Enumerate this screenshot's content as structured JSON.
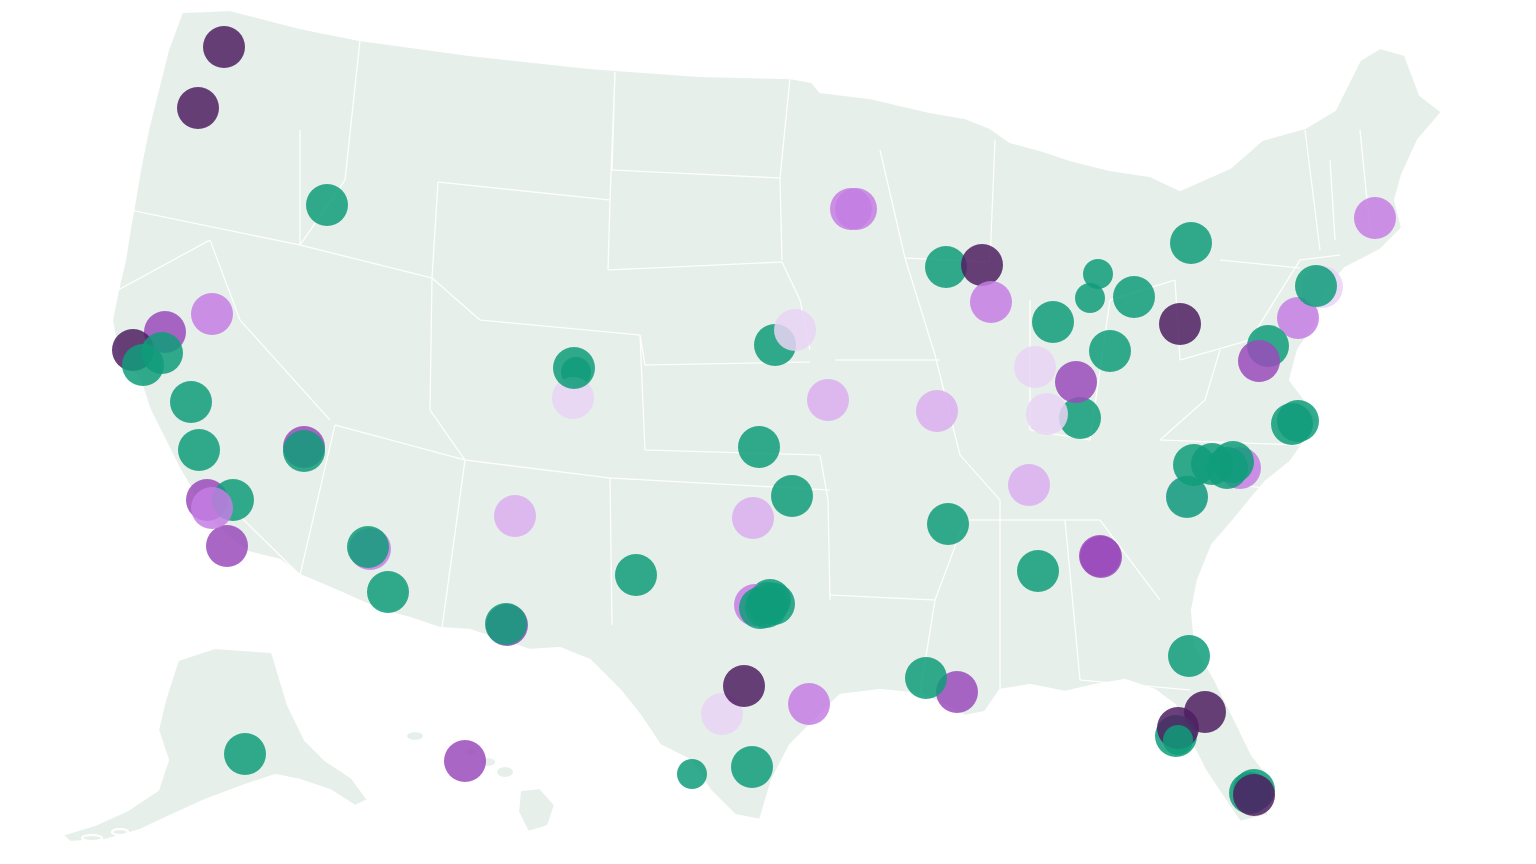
{
  "map": {
    "land_color": "#e6efe9",
    "border_color": "#ffffff"
  },
  "categories": {
    "green": {
      "color": "#0f9c7a",
      "opacity": 0.85
    },
    "dark-purple": {
      "color": "#4f1f62",
      "opacity": 0.85
    },
    "purple": {
      "color": "#9a4bbb",
      "opacity": 0.85
    },
    "violet": {
      "color": "#c47ee3",
      "opacity": 0.85
    },
    "lavender": {
      "color": "#d9aef0",
      "opacity": 0.85
    },
    "pale": {
      "color": "#e9d4f4",
      "opacity": 0.85
    }
  },
  "markers": [
    {
      "cat": "dark-purple",
      "size": "large"
    },
    {
      "cat": "dark-purple",
      "size": "large"
    },
    {
      "cat": "green",
      "size": "large"
    },
    {
      "cat": "violet",
      "size": "large"
    },
    {
      "cat": "purple",
      "size": "large"
    },
    {
      "cat": "dark-purple",
      "size": "large"
    },
    {
      "cat": "green",
      "size": "large"
    },
    {
      "cat": "green",
      "size": "large"
    },
    {
      "cat": "green",
      "size": "large"
    },
    {
      "cat": "green",
      "size": "large"
    },
    {
      "cat": "purple",
      "size": "large"
    },
    {
      "cat": "green",
      "size": "large"
    },
    {
      "cat": "purple",
      "size": "large"
    },
    {
      "cat": "violet",
      "size": "large"
    },
    {
      "cat": "green",
      "size": "medium"
    },
    {
      "cat": "purple",
      "size": "large"
    },
    {
      "cat": "green",
      "size": "large"
    },
    {
      "cat": "violet",
      "size": "large"
    },
    {
      "cat": "green",
      "size": "large"
    },
    {
      "cat": "green",
      "size": "large"
    },
    {
      "cat": "purple",
      "size": "large"
    },
    {
      "cat": "green",
      "size": "large"
    },
    {
      "cat": "pale",
      "size": "large"
    },
    {
      "cat": "lavender",
      "size": "large"
    },
    {
      "cat": "green",
      "size": "large"
    },
    {
      "cat": "green",
      "size": "large"
    },
    {
      "cat": "green",
      "size": "large"
    },
    {
      "cat": "lavender",
      "size": "large"
    },
    {
      "cat": "pale",
      "size": "large"
    },
    {
      "cat": "green",
      "size": "large"
    },
    {
      "cat": "green",
      "size": "large"
    },
    {
      "cat": "violet",
      "size": "large"
    },
    {
      "cat": "violet",
      "size": "large"
    },
    {
      "cat": "green",
      "size": "large"
    },
    {
      "cat": "green",
      "size": "large"
    },
    {
      "cat": "dark-purple",
      "size": "large"
    },
    {
      "cat": "violet",
      "size": "large"
    },
    {
      "cat": "green",
      "size": "medium"
    },
    {
      "cat": "green",
      "size": "medium"
    },
    {
      "cat": "green",
      "size": "large"
    },
    {
      "cat": "pale",
      "size": "large"
    },
    {
      "cat": "lavender",
      "size": "large"
    },
    {
      "cat": "green",
      "size": "large"
    },
    {
      "cat": "green",
      "size": "large"
    },
    {
      "cat": "green",
      "size": "large"
    },
    {
      "cat": "green",
      "size": "large"
    },
    {
      "cat": "dark-purple",
      "size": "large"
    },
    {
      "cat": "violet",
      "size": "large"
    },
    {
      "cat": "pale",
      "size": "large"
    },
    {
      "cat": "green",
      "size": "large"
    },
    {
      "cat": "green",
      "size": "large"
    },
    {
      "cat": "green",
      "size": "large"
    },
    {
      "cat": "green",
      "size": "large"
    },
    {
      "cat": "lavender",
      "size": "large"
    },
    {
      "cat": "pale",
      "size": "large"
    },
    {
      "cat": "pale",
      "size": "large"
    },
    {
      "cat": "purple",
      "size": "large"
    },
    {
      "cat": "green",
      "size": "large"
    },
    {
      "cat": "lavender",
      "size": "large"
    },
    {
      "cat": "green",
      "size": "medium"
    },
    {
      "cat": "green",
      "size": "large"
    },
    {
      "cat": "purple",
      "size": "large"
    },
    {
      "cat": "green",
      "size": "large"
    },
    {
      "cat": "green",
      "size": "large"
    },
    {
      "cat": "purple",
      "size": "large"
    },
    {
      "cat": "violet",
      "size": "large"
    },
    {
      "cat": "purple",
      "size": "large"
    },
    {
      "cat": "green",
      "size": "large"
    },
    {
      "cat": "violet",
      "size": "large"
    },
    {
      "cat": "violet",
      "size": "large"
    },
    {
      "cat": "green",
      "size": "large"
    },
    {
      "cat": "purple",
      "size": "large"
    },
    {
      "cat": "green",
      "size": "large"
    },
    {
      "cat": "green",
      "size": "large"
    },
    {
      "cat": "pale",
      "size": "large"
    },
    {
      "cat": "violet",
      "size": "large"
    },
    {
      "cat": "green",
      "size": "large"
    },
    {
      "cat": "green",
      "size": "large"
    },
    {
      "cat": "green",
      "size": "large"
    },
    {
      "cat": "green",
      "size": "large"
    },
    {
      "cat": "dark-purple",
      "size": "large"
    },
    {
      "cat": "dark-purple",
      "size": "large"
    },
    {
      "cat": "green",
      "size": "large"
    },
    {
      "cat": "dark-purple",
      "size": "large"
    },
    {
      "cat": "green",
      "size": "large"
    },
    {
      "cat": "green",
      "size": "large"
    },
    {
      "cat": "purple",
      "size": "large"
    },
    {
      "cat": "green",
      "size": "large"
    },
    {
      "cat": "green",
      "size": "medium"
    },
    {
      "cat": "green",
      "size": "large"
    },
    {
      "cat": "dark-purple",
      "size": "large"
    },
    {
      "cat": "green",
      "size": "large"
    }
  ]
}
